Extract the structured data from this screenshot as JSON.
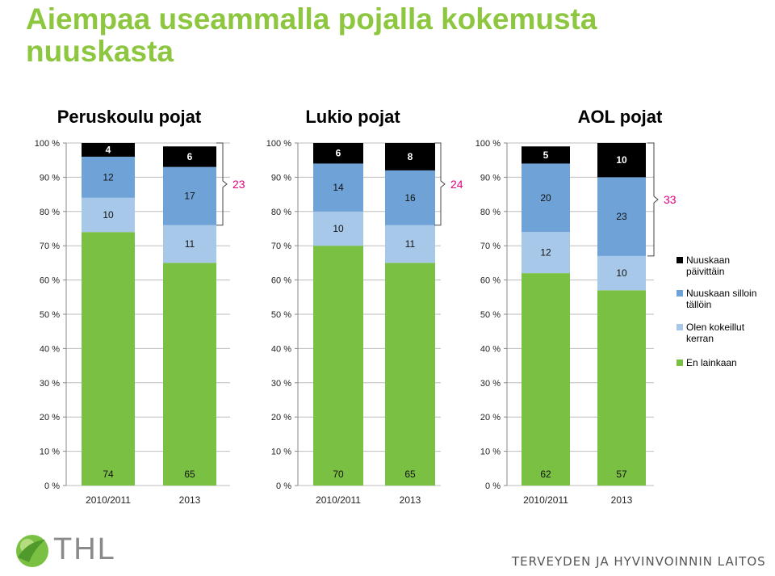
{
  "title": "Aiempaa useammalla pojalla kokemusta nuuskasta",
  "colors": {
    "title": "#8dc63f",
    "en_lainkaan": "#7ac143",
    "kokeillut": "#a7c8e8",
    "silloin_talloin": "#6fa3d8",
    "paivittain": "#000000",
    "sum_accent": "#e6007e"
  },
  "chart_data": [
    {
      "type": "bar",
      "stacked": true,
      "title": "Peruskoulu pojat",
      "categories": [
        "2010/2011",
        "2013"
      ],
      "ylim": [
        0,
        100
      ],
      "yticks": [
        "0 %",
        "10 %",
        "20 %",
        "30 %",
        "40 %",
        "50 %",
        "60 %",
        "70 %",
        "80 %",
        "90 %",
        "100 %"
      ],
      "series": [
        {
          "name": "En lainkaan",
          "values": [
            74,
            65
          ]
        },
        {
          "name": "Olen kokeillut kerran",
          "values": [
            10,
            11
          ]
        },
        {
          "name": "Nuuskaan silloin tällöin",
          "values": [
            12,
            17
          ]
        },
        {
          "name": "Nuuskaan päivittäin",
          "values": [
            4,
            6
          ]
        }
      ],
      "bracket_sum": "23"
    },
    {
      "type": "bar",
      "stacked": true,
      "title": "Lukio pojat",
      "categories": [
        "2010/2011",
        "2013"
      ],
      "ylim": [
        0,
        100
      ],
      "yticks": [
        "0 %",
        "10 %",
        "20 %",
        "30 %",
        "40 %",
        "50 %",
        "60 %",
        "70 %",
        "80 %",
        "90 %",
        "100 %"
      ],
      "series": [
        {
          "name": "En lainkaan",
          "values": [
            70,
            65
          ]
        },
        {
          "name": "Olen kokeillut kerran",
          "values": [
            10,
            11
          ]
        },
        {
          "name": "Nuuskaan silloin tällöin",
          "values": [
            14,
            16
          ]
        },
        {
          "name": "Nuuskaan päivittäin",
          "values": [
            6,
            8
          ]
        }
      ],
      "bracket_sum": "24"
    },
    {
      "type": "bar",
      "stacked": true,
      "title": "AOL pojat",
      "categories": [
        "2010/2011",
        "2013"
      ],
      "ylim": [
        0,
        100
      ],
      "yticks": [
        "0 %",
        "10 %",
        "20 %",
        "30 %",
        "40 %",
        "50 %",
        "60 %",
        "70 %",
        "80 %",
        "90 %",
        "100 %"
      ],
      "series": [
        {
          "name": "En lainkaan",
          "values": [
            62,
            57
          ]
        },
        {
          "name": "Olen kokeillut kerran",
          "values": [
            12,
            10
          ]
        },
        {
          "name": "Nuuskaan silloin tällöin",
          "values": [
            20,
            23
          ]
        },
        {
          "name": "Nuuskaan päivittäin",
          "values": [
            5,
            10
          ]
        }
      ],
      "bracket_sum": "33"
    }
  ],
  "legend": {
    "placement": "right",
    "items": [
      {
        "label_lines": [
          "Nuuskaan",
          "päivittäin"
        ],
        "color": "#000000"
      },
      {
        "label_lines": [
          "Nuuskaan silloin",
          "tällöin"
        ],
        "color": "#6fa3d8"
      },
      {
        "label_lines": [
          "Olen kokeillut",
          "kerran"
        ],
        "color": "#a7c8e8"
      },
      {
        "label_lines": [
          "En lainkaan"
        ],
        "color": "#7ac143"
      }
    ]
  },
  "footer": {
    "logo_text": "THL",
    "organization": "TERVEYDEN JA HYVINVOINNIN LAITOS"
  }
}
